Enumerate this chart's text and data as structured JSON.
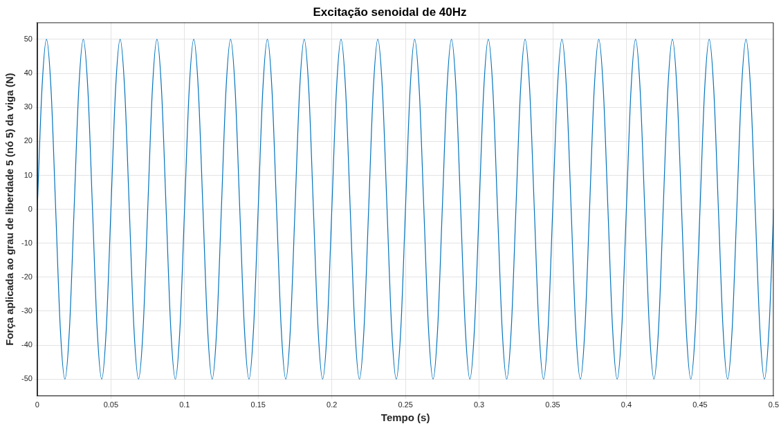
{
  "chart_data": {
    "type": "line",
    "title": "Excitação senoidal de 40Hz",
    "xlabel": "Tempo (s)",
    "ylabel": "Força aplicada ao grau de liberdade 5 (nó 5) da viga (N)",
    "xlim": [
      0,
      0.5
    ],
    "xticks": [
      0,
      0.05,
      0.1,
      0.15,
      0.2,
      0.25,
      0.3,
      0.35,
      0.4,
      0.45,
      0.5
    ],
    "ylim": [
      -55,
      55
    ],
    "yticks": [
      -50,
      -40,
      -30,
      -20,
      -10,
      0,
      10,
      20,
      30,
      40,
      50
    ],
    "grid": true,
    "marker": "none",
    "color": "#0072bd",
    "x": [
      0,
      0.003125,
      0.00625,
      0.009375,
      0.0125,
      0.015625,
      0.01875,
      0.021875,
      0.025,
      0.028125,
      0.03125,
      0.034375,
      0.0375,
      0.040625,
      0.04375,
      0.046875,
      0.05,
      0.053125,
      0.05625,
      0.059375,
      0.0625,
      0.065625,
      0.06875,
      0.071875,
      0.075,
      0.078125,
      0.08125,
      0.084375,
      0.0875,
      0.090625,
      0.09375,
      0.096875,
      0.1,
      0.103125,
      0.10625,
      0.109375,
      0.1125,
      0.115625,
      0.11875,
      0.121875,
      0.125,
      0.128125,
      0.13125,
      0.134375,
      0.1375,
      0.140625,
      0.14375,
      0.146875,
      0.15,
      0.153125,
      0.15625,
      0.159375,
      0.1625,
      0.165625,
      0.16875,
      0.171875,
      0.175,
      0.178125,
      0.18125,
      0.184375,
      0.1875,
      0.190625,
      0.19375,
      0.196875,
      0.2,
      0.203125,
      0.20625,
      0.209375,
      0.2125,
      0.215625,
      0.21875,
      0.221875,
      0.225,
      0.228125,
      0.23125,
      0.234375,
      0.2375,
      0.240625,
      0.24375,
      0.246875,
      0.25,
      0.253125,
      0.25625,
      0.259375,
      0.2625,
      0.265625,
      0.26875,
      0.271875,
      0.275,
      0.278125,
      0.28125,
      0.284375,
      0.2875,
      0.290625,
      0.29375,
      0.296875,
      0.3,
      0.303125,
      0.30625,
      0.309375,
      0.3125,
      0.315625,
      0.31875,
      0.321875,
      0.325,
      0.328125,
      0.33125,
      0.334375,
      0.3375,
      0.340625,
      0.34375,
      0.346875,
      0.35,
      0.353125,
      0.35625,
      0.359375,
      0.3625,
      0.365625,
      0.36875,
      0.371875,
      0.375,
      0.378125,
      0.38125,
      0.384375,
      0.3875,
      0.390625,
      0.39375,
      0.396875,
      0.4,
      0.403125,
      0.40625,
      0.409375,
      0.4125,
      0.415625,
      0.41875,
      0.421875,
      0.425,
      0.428125,
      0.43125,
      0.434375,
      0.4375,
      0.440625,
      0.44375,
      0.446875,
      0.45,
      0.453125,
      0.45625,
      0.459375,
      0.4625,
      0.465625,
      0.46875,
      0.471875,
      0.475,
      0.478125,
      0.48125,
      0.484375,
      0.4875,
      0.490625,
      0.49375,
      0.496875,
      0.5
    ],
    "values": [
      0,
      35,
      50,
      35,
      0,
      -35,
      -50,
      -35,
      0,
      35,
      50,
      35,
      0,
      -35,
      -50,
      -35,
      0,
      35,
      50,
      35,
      0,
      -35,
      -50,
      -35,
      0,
      35,
      50,
      35,
      0,
      -35,
      -50,
      -35,
      0,
      35,
      50,
      35,
      0,
      -35,
      -50,
      -35,
      0,
      35,
      50,
      35,
      0,
      -35,
      -50,
      -35,
      0,
      35,
      50,
      35,
      0,
      -35,
      -50,
      -35,
      0,
      35,
      50,
      35,
      0,
      -35,
      -50,
      -35,
      0,
      35,
      50,
      35,
      0,
      -35,
      -50,
      -35,
      0,
      35,
      50,
      35,
      0,
      -35,
      -50,
      -35,
      0,
      35,
      50,
      35,
      0,
      -35,
      -50,
      -35,
      0,
      35,
      50,
      35,
      0,
      -35,
      -50,
      -35,
      0,
      35,
      50,
      35,
      0,
      -35,
      -50,
      -35,
      0,
      35,
      50,
      35,
      0,
      -35,
      -50,
      -35,
      0,
      35,
      50,
      35,
      0,
      -35,
      -50,
      -35,
      0,
      35,
      50,
      35,
      0,
      -35,
      -50,
      -35,
      0,
      35,
      50,
      35,
      0,
      -35,
      -50,
      -35,
      0,
      35,
      50,
      35,
      0,
      -35,
      -50,
      -35,
      0,
      35,
      50,
      35,
      0,
      -35,
      -50,
      -35,
      0,
      35,
      50,
      35,
      0,
      -35,
      -50,
      -35,
      0
    ]
  }
}
